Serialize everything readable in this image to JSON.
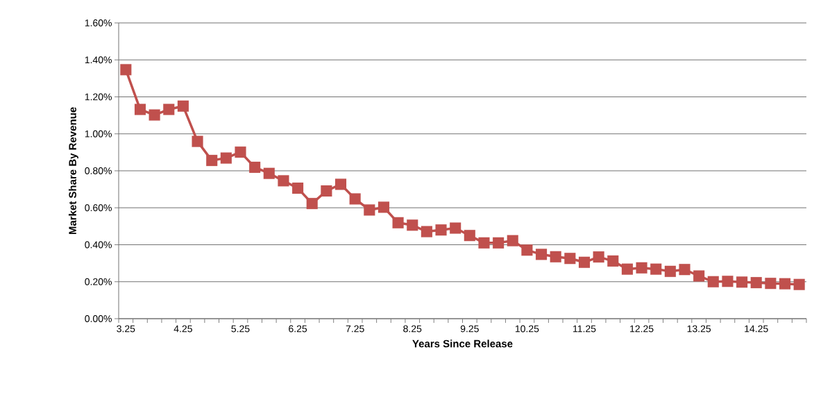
{
  "chart_data": {
    "type": "line",
    "xlabel": "Years Since Release",
    "ylabel": "Market Share By Revenue",
    "categories": [
      "3.25",
      null,
      null,
      null,
      "4.25",
      null,
      null,
      null,
      "5.25",
      null,
      null,
      null,
      "6.25",
      null,
      null,
      null,
      "7.25",
      null,
      null,
      null,
      "8.25",
      null,
      null,
      null,
      "9.25",
      null,
      null,
      null,
      "10.25",
      null,
      null,
      null,
      "11.25",
      null,
      null,
      null,
      "12.25",
      null,
      null,
      null,
      "13.25",
      null,
      null,
      null,
      "14.25",
      null,
      null,
      null
    ],
    "series": [
      {
        "color": "#c0504d",
        "values": [
          1.347,
          1.132,
          1.102,
          1.132,
          1.15,
          0.959,
          0.856,
          0.869,
          0.901,
          0.819,
          0.786,
          0.746,
          0.706,
          0.623,
          0.691,
          0.727,
          0.648,
          0.588,
          0.603,
          0.519,
          0.506,
          0.471,
          0.48,
          0.49,
          0.45,
          0.41,
          0.41,
          0.422,
          0.371,
          0.348,
          0.335,
          0.326,
          0.305,
          0.334,
          0.312,
          0.268,
          0.275,
          0.268,
          0.256,
          0.266,
          0.231,
          0.2,
          0.202,
          0.198,
          0.195,
          0.191,
          0.189,
          0.185
        ]
      }
    ],
    "ylim": [
      0,
      1.6
    ],
    "yticks": [
      {
        "value": 0,
        "label": "0.00%"
      },
      {
        "value": 0.2,
        "label": "0.20%"
      },
      {
        "value": 0.4,
        "label": "0.40%"
      },
      {
        "value": 0.6,
        "label": "0.60%"
      },
      {
        "value": 0.8,
        "label": "0.80%"
      },
      {
        "value": 1.0,
        "label": "1.00%"
      },
      {
        "value": 1.2,
        "label": "1.20%"
      },
      {
        "value": 1.4,
        "label": "1.40%"
      },
      {
        "value": 1.6,
        "label": "1.60%"
      }
    ],
    "grid": "y",
    "marker": "square",
    "line_style": "solid"
  }
}
